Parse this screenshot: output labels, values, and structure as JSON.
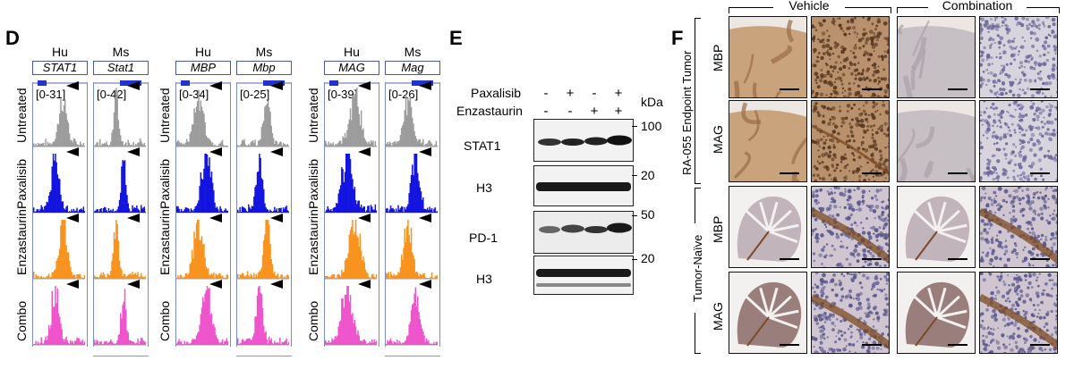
{
  "panel_d": {
    "letter": "D",
    "groups": [
      {
        "hu_label": "Hu",
        "ms_label": "Ms",
        "hu_gene": "STAT1",
        "ms_gene": "Stat1",
        "hu_range": "[0-31]",
        "ms_range": "[0-42]"
      },
      {
        "hu_label": "Hu",
        "ms_label": "Ms",
        "hu_gene": "MBP",
        "ms_gene": "Mbp",
        "hu_range": "[0-34]",
        "ms_range": "[0-25]"
      },
      {
        "hu_label": "Hu",
        "ms_label": "Ms",
        "hu_gene": "MAG",
        "ms_gene": "Mag",
        "hu_range": "[0-39]",
        "ms_range": "[0-26]"
      }
    ],
    "rows": [
      "Untreated",
      "Paxalisib",
      "Enzastaurin",
      "Combo"
    ],
    "colors": {
      "Untreated": "#9c9c9c",
      "Paxalisib": "#1414e0",
      "Enzastaurin": "#f7931e",
      "Combo": "#ee55cc"
    }
  },
  "panel_e": {
    "letter": "E",
    "row1_label": "Paxalisib",
    "row2_label": "Enzastaurin",
    "row1_signs": [
      "-",
      "+",
      "-",
      "+"
    ],
    "row2_signs": [
      "-",
      "-",
      "+",
      "+"
    ],
    "kda_label": "kDa",
    "blots": [
      {
        "label": "STAT1",
        "marker": "100"
      },
      {
        "label": "H3",
        "marker": "20"
      },
      {
        "label": "PD-1",
        "marker": "50"
      },
      {
        "label": "H3",
        "marker": "20"
      }
    ]
  },
  "panel_f": {
    "letter": "F",
    "col_headers": [
      "Vehicle",
      "Combination"
    ],
    "group_labels": [
      "RA-055 Endpoint Tumor",
      "Tumor-Naïve"
    ],
    "row_labels": [
      "MBP",
      "MAG",
      "MBP",
      "MAG"
    ]
  }
}
